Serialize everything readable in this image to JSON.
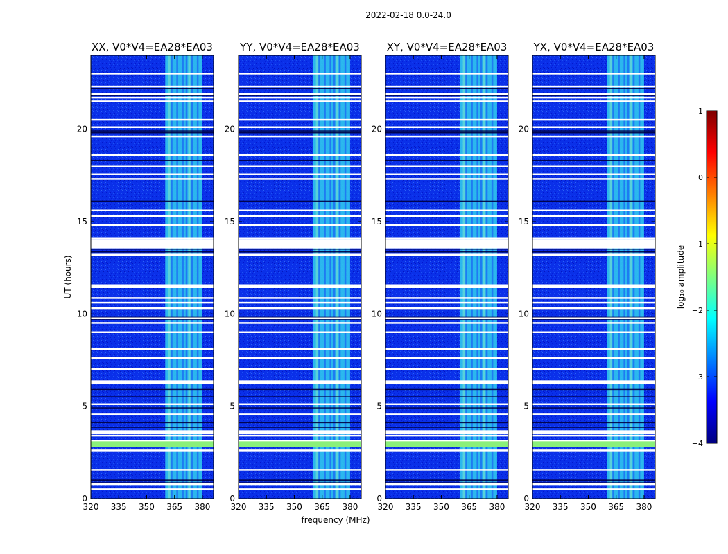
{
  "chart_data": {
    "type": "heatmap",
    "suptitle": "2022-02-18 0.0-24.0",
    "xlabel": "frequency (MHz)",
    "ylabel": "UT (hours)",
    "xlim": [
      320,
      386
    ],
    "ylim": [
      0,
      24
    ],
    "xticks": [
      320,
      335,
      350,
      365,
      380
    ],
    "yticks": [
      0,
      5,
      10,
      15,
      20
    ],
    "panels": [
      {
        "title": "XX, V0*V4=EA28*EA03",
        "band_mhz": [
          360,
          380
        ]
      },
      {
        "title": "YY, V0*V4=EA28*EA03",
        "band_mhz": [
          360,
          380
        ]
      },
      {
        "title": "XY, V0*V4=EA28*EA03",
        "band_mhz": [
          360,
          380
        ]
      },
      {
        "title": "YX, V0*V4=EA28*EA03",
        "band_mhz": [
          360,
          380
        ]
      }
    ],
    "flagged_hours": [
      0.5,
      0.75,
      1.55,
      2.6,
      2.95,
      3.1,
      3.4,
      3.6,
      4.55,
      5.1,
      6.3,
      7.0,
      7.6,
      8.1,
      9.0,
      9.5,
      9.75,
      10.3,
      10.6,
      10.85,
      11.45,
      11.55,
      13.2,
      14.0,
      14.1,
      14.8,
      15.3,
      15.6,
      17.3,
      17.55,
      18.0,
      18.6,
      19.6,
      20.1,
      20.5,
      21.5,
      21.7,
      21.9,
      22.3,
      23.0
    ],
    "dark_hours": [
      0.85,
      0.95,
      1.0,
      3.85,
      4.1,
      4.9,
      5.5,
      5.9,
      9.7,
      9.8,
      13.35,
      13.5,
      16.1,
      18.3,
      19.8,
      19.9,
      21.85,
      22.2
    ],
    "colorbar": {
      "label": "log₁₀ amplitude",
      "ticks": [
        "1",
        "0",
        "−1",
        "−2",
        "−3",
        "−4"
      ],
      "range": [
        -4,
        1
      ],
      "colormap": [
        "#00007f",
        "#0000ff",
        "#007fff",
        "#00ffff",
        "#7fff7f",
        "#ffff00",
        "#ff7f00",
        "#ff0000",
        "#7f0000"
      ]
    }
  }
}
